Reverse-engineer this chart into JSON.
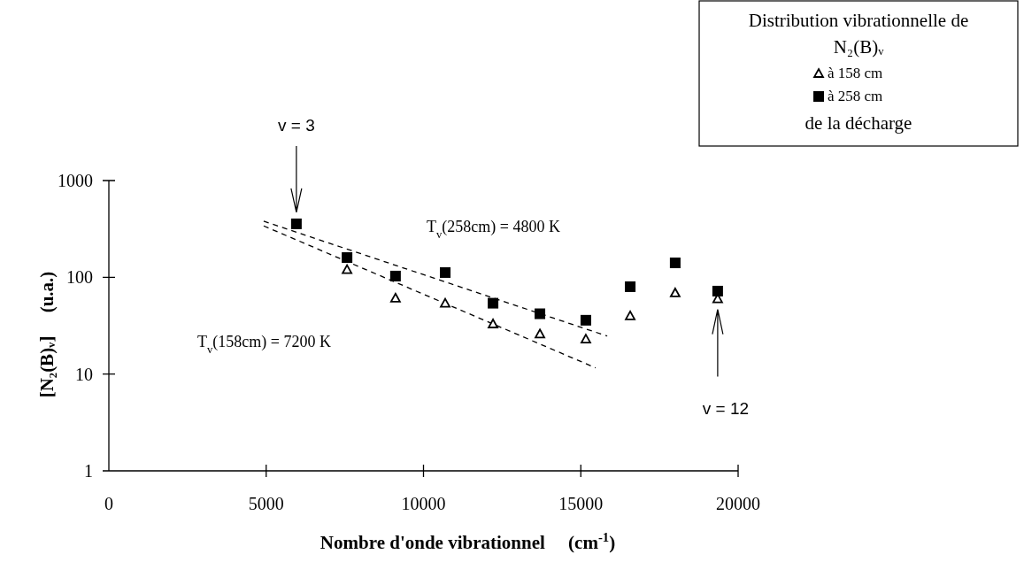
{
  "chart_data": {
    "type": "scatter",
    "xlabel": "Nombre d'onde vibrationnel     (cm$^{-1}$)",
    "ylabel": "[N₂(B)ᵥ]     (u.a.)",
    "legend_title": "Distribution vibrationnelle de N₂(B)ᵥ",
    "legend": "top right",
    "log": "y",
    "grid": false,
    "xlim": [
      0,
      20000
    ],
    "xticks": [
      0,
      5000,
      10000,
      15000,
      20000
    ],
    "ylim": [
      1,
      1000
    ],
    "yticks": [
      1,
      10,
      100,
      1000
    ],
    "x": [
      5960,
      7570,
      9110,
      10690,
      12210,
      13700,
      15160,
      16570,
      18000,
      19350
    ],
    "series": [
      {
        "name": "à 158 cm",
        "marker": "triangle",
        "color": "#000000",
        "values": [
          null,
          120,
          61,
          54,
          33,
          26,
          23,
          40,
          69,
          60
        ]
      },
      {
        "name": "à 258 cm",
        "marker": "square",
        "color": "#000000",
        "values": [
          357,
          160,
          103,
          112,
          54,
          42,
          36,
          80,
          141,
          72
        ]
      },
      {
        "type": "line",
        "line_style": "dashed",
        "marker": "none",
        "color": "#000000",
        "x": [
          4920,
          15840
        ],
        "values": [
          380,
          24.7
        ]
      },
      {
        "type": "line",
        "line_style": "dashed",
        "marker": "none",
        "color": "#000000",
        "x": [
          4920,
          15470
        ],
        "values": [
          340,
          11.6
        ]
      }
    ],
    "annotations": [
      "de la décharge",
      "v = 3",
      "v = 12",
      "T$_{v}$(258cm) = 4800 K",
      "T$_{v}$(158cm) = 7200 K"
    ]
  }
}
